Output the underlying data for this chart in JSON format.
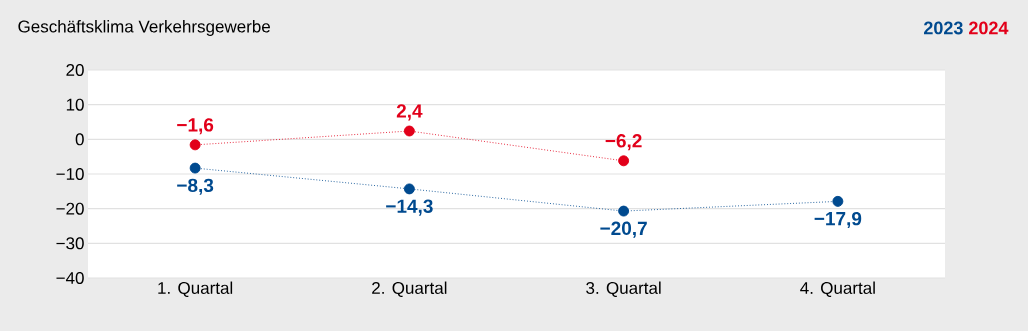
{
  "chart_data": {
    "type": "line",
    "title": "Geschäftsklima Verkehrsgewerbe",
    "categories": [
      "1. Quartal",
      "2. Quartal",
      "3. Quartal",
      "4. Quartal"
    ],
    "series": [
      {
        "name": "2023",
        "color": "#004a8f",
        "values": [
          -8.3,
          -14.3,
          -20.7,
          -17.9
        ],
        "value_labels": [
          "−8,3",
          "−14,3",
          "−20,7",
          "−17,9"
        ]
      },
      {
        "name": "2024",
        "color": "#e2001a",
        "values": [
          -1.6,
          2.4,
          -6.2,
          null
        ],
        "value_labels": [
          "−1,6",
          "2,4",
          "−6,2",
          null
        ]
      }
    ],
    "ylim": [
      -40,
      20
    ],
    "yticks": [
      {
        "value": -40,
        "label": "−40"
      },
      {
        "value": -30,
        "label": "−30"
      },
      {
        "value": -20,
        "label": "−20"
      },
      {
        "value": -10,
        "label": "−10"
      },
      0,
      10,
      20
    ],
    "grid": "y",
    "legend": "top right",
    "marker": "circle",
    "line_style": "dotted"
  }
}
